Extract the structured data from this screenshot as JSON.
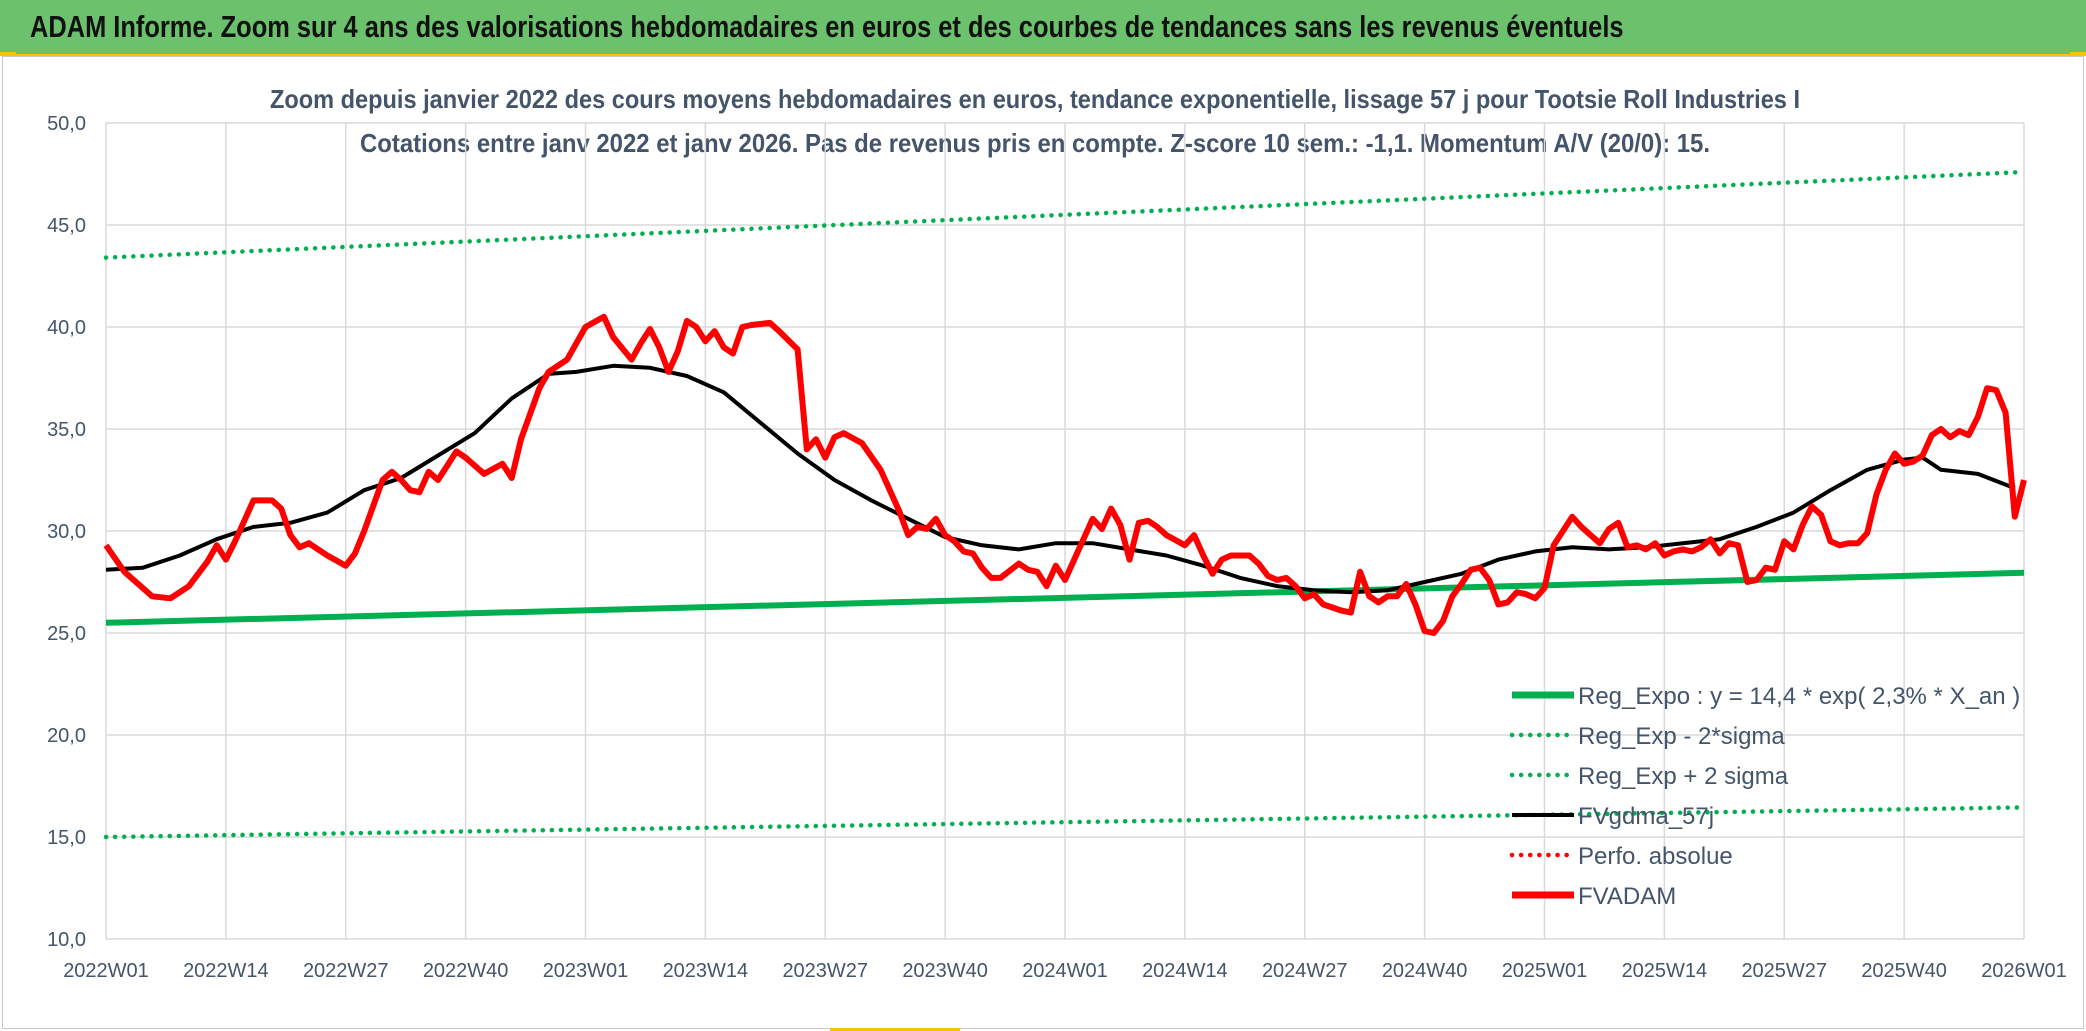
{
  "header": {
    "title": "ADAM Informe. Zoom sur 4 ans des valorisations hebdomadaires en euros et des courbes de tendances sans les revenus éventuels"
  },
  "colors": {
    "banner": "#6cc16c",
    "reg": "#00b050",
    "fvadam": "#ff0000",
    "fvgdma": "#000000",
    "perfo": "#ff0000",
    "text": "#44546a"
  },
  "chart_data": {
    "type": "line",
    "title": "Zoom depuis janvier 2022 des cours moyens hebdomadaires en euros, tendance exponentielle, lissage 57 j pour Tootsie Roll Industries I",
    "subtitle": "Cotations entre janv 2022 et janv 2026. Pas de revenus pris en compte. Z-score 10 sem.: -1,1. Momentum A/V (20/0): 15.",
    "xlabel": "",
    "ylabel": "",
    "ylim": [
      10,
      50
    ],
    "yticks": [
      "10,0",
      "15,0",
      "20,0",
      "25,0",
      "30,0",
      "35,0",
      "40,0",
      "45,0",
      "50,0"
    ],
    "xrange": [
      0,
      208
    ],
    "x_ticks": [
      {
        "label": "2022W01",
        "x": 0
      },
      {
        "label": "2022W14",
        "x": 13
      },
      {
        "label": "2022W27",
        "x": 26
      },
      {
        "label": "2022W40",
        "x": 39
      },
      {
        "label": "2023W01",
        "x": 52
      },
      {
        "label": "2023W14",
        "x": 65
      },
      {
        "label": "2023W27",
        "x": 78
      },
      {
        "label": "2023W40",
        "x": 91
      },
      {
        "label": "2024W01",
        "x": 104
      },
      {
        "label": "2024W14",
        "x": 117
      },
      {
        "label": "2024W27",
        "x": 130
      },
      {
        "label": "2024W40",
        "x": 143
      },
      {
        "label": "2025W01",
        "x": 156
      },
      {
        "label": "2025W14",
        "x": 169
      },
      {
        "label": "2025W27",
        "x": 182
      },
      {
        "label": "2025W40",
        "x": 195
      },
      {
        "label": "2026W01",
        "x": 208
      }
    ],
    "series": [
      {
        "name": "Reg_Expo : y = 14,4 * exp( 2,3% *  X_an )",
        "style": "solid-thick",
        "color": "#00b050",
        "points": [
          [
            0,
            25.5
          ],
          [
            208,
            27.95
          ]
        ]
      },
      {
        "name": "Reg_Exp - 2*sigma",
        "style": "dotted",
        "color": "#00b050",
        "points": [
          [
            0,
            15.0
          ],
          [
            208,
            16.45
          ]
        ]
      },
      {
        "name": "Reg_Exp + 2 sigma",
        "style": "dotted",
        "color": "#00b050",
        "points": [
          [
            0,
            43.4
          ],
          [
            208,
            47.6
          ]
        ]
      },
      {
        "name": "FVgdma_57j",
        "style": "solid",
        "color": "#000000",
        "points": [
          [
            0,
            28.1
          ],
          [
            4,
            28.2
          ],
          [
            8,
            28.8
          ],
          [
            12,
            29.6
          ],
          [
            16,
            30.2
          ],
          [
            20,
            30.4
          ],
          [
            24,
            30.9
          ],
          [
            28,
            32.0
          ],
          [
            32,
            32.6
          ],
          [
            36,
            33.7
          ],
          [
            40,
            34.8
          ],
          [
            44,
            36.5
          ],
          [
            48,
            37.7
          ],
          [
            51,
            37.8
          ],
          [
            55,
            38.1
          ],
          [
            59,
            38.0
          ],
          [
            63,
            37.6
          ],
          [
            67,
            36.8
          ],
          [
            71,
            35.3
          ],
          [
            75,
            33.8
          ],
          [
            79,
            32.5
          ],
          [
            83,
            31.5
          ],
          [
            87,
            30.6
          ],
          [
            91,
            29.7
          ],
          [
            95,
            29.3
          ],
          [
            99,
            29.1
          ],
          [
            103,
            29.4
          ],
          [
            107,
            29.4
          ],
          [
            111,
            29.1
          ],
          [
            115,
            28.8
          ],
          [
            119,
            28.3
          ],
          [
            123,
            27.7
          ],
          [
            127,
            27.3
          ],
          [
            131,
            27.1
          ],
          [
            135,
            27.0
          ],
          [
            139,
            27.1
          ],
          [
            143,
            27.5
          ],
          [
            147,
            27.9
          ],
          [
            151,
            28.6
          ],
          [
            155,
            29.0
          ],
          [
            159,
            29.2
          ],
          [
            163,
            29.1
          ],
          [
            167,
            29.2
          ],
          [
            171,
            29.4
          ],
          [
            175,
            29.6
          ],
          [
            179,
            30.2
          ],
          [
            183,
            30.9
          ],
          [
            187,
            32.0
          ],
          [
            191,
            33.0
          ],
          [
            195,
            33.5
          ],
          [
            197,
            33.6
          ],
          [
            199,
            33.0
          ],
          [
            203,
            32.8
          ],
          [
            207,
            32.1
          ]
        ]
      },
      {
        "name": "Perfo. absolue",
        "style": "dotted",
        "color": "#ff0000",
        "points": []
      },
      {
        "name": "FVADAM",
        "style": "solid-thick",
        "color": "#ff0000",
        "points": [
          [
            0,
            29.3
          ],
          [
            2,
            28.0
          ],
          [
            4,
            27.2
          ],
          [
            5,
            26.8
          ],
          [
            7,
            26.7
          ],
          [
            9,
            27.3
          ],
          [
            11,
            28.5
          ],
          [
            12,
            29.3
          ],
          [
            13,
            28.6
          ],
          [
            14,
            29.5
          ],
          [
            16,
            31.5
          ],
          [
            18,
            31.5
          ],
          [
            19,
            31.1
          ],
          [
            20,
            29.8
          ],
          [
            21,
            29.2
          ],
          [
            22,
            29.4
          ],
          [
            24,
            28.8
          ],
          [
            26,
            28.3
          ],
          [
            27,
            28.9
          ],
          [
            28,
            30.0
          ],
          [
            30,
            32.5
          ],
          [
            31,
            32.9
          ],
          [
            32,
            32.5
          ],
          [
            33,
            32.0
          ],
          [
            34,
            31.9
          ],
          [
            35,
            32.9
          ],
          [
            36,
            32.5
          ],
          [
            37,
            33.2
          ],
          [
            38,
            33.9
          ],
          [
            39,
            33.6
          ],
          [
            41,
            32.8
          ],
          [
            43,
            33.3
          ],
          [
            44,
            32.6
          ],
          [
            45,
            34.5
          ],
          [
            47,
            37.0
          ],
          [
            48,
            37.8
          ],
          [
            50,
            38.4
          ],
          [
            51,
            39.2
          ],
          [
            52,
            40.0
          ],
          [
            54,
            40.5
          ],
          [
            55,
            39.5
          ],
          [
            57,
            38.4
          ],
          [
            58,
            39.2
          ],
          [
            59,
            39.9
          ],
          [
            60,
            39.0
          ],
          [
            61,
            37.8
          ],
          [
            62,
            38.8
          ],
          [
            63,
            40.3
          ],
          [
            64,
            40.0
          ],
          [
            65,
            39.3
          ],
          [
            66,
            39.8
          ],
          [
            67,
            39.0
          ],
          [
            68,
            38.7
          ],
          [
            69,
            40.0
          ],
          [
            70,
            40.1
          ],
          [
            72,
            40.2
          ],
          [
            73,
            39.8
          ],
          [
            75,
            38.9
          ],
          [
            76,
            34.0
          ],
          [
            77,
            34.5
          ],
          [
            78,
            33.6
          ],
          [
            79,
            34.6
          ],
          [
            80,
            34.8
          ],
          [
            82,
            34.3
          ],
          [
            84,
            33.0
          ],
          [
            86,
            31.0
          ],
          [
            87,
            29.8
          ],
          [
            88,
            30.2
          ],
          [
            89,
            30.1
          ],
          [
            90,
            30.6
          ],
          [
            91,
            29.8
          ],
          [
            92,
            29.5
          ],
          [
            93,
            29.0
          ],
          [
            94,
            28.9
          ],
          [
            95,
            28.2
          ],
          [
            96,
            27.7
          ],
          [
            97,
            27.7
          ],
          [
            99,
            28.4
          ],
          [
            100,
            28.1
          ],
          [
            101,
            28.0
          ],
          [
            102,
            27.3
          ],
          [
            103,
            28.3
          ],
          [
            104,
            27.6
          ],
          [
            105,
            28.6
          ],
          [
            107,
            30.6
          ],
          [
            108,
            30.1
          ],
          [
            109,
            31.1
          ],
          [
            110,
            30.3
          ],
          [
            111,
            28.6
          ],
          [
            112,
            30.4
          ],
          [
            113,
            30.5
          ],
          [
            114,
            30.2
          ],
          [
            115,
            29.8
          ],
          [
            117,
            29.3
          ],
          [
            118,
            29.8
          ],
          [
            119,
            28.8
          ],
          [
            120,
            27.9
          ],
          [
            121,
            28.6
          ],
          [
            122,
            28.8
          ],
          [
            124,
            28.8
          ],
          [
            125,
            28.4
          ],
          [
            126,
            27.8
          ],
          [
            127,
            27.6
          ],
          [
            128,
            27.7
          ],
          [
            129,
            27.3
          ],
          [
            130,
            26.7
          ],
          [
            131,
            26.9
          ],
          [
            132,
            26.4
          ],
          [
            134,
            26.1
          ],
          [
            135,
            26.0
          ],
          [
            136,
            28.0
          ],
          [
            137,
            26.8
          ],
          [
            138,
            26.5
          ],
          [
            139,
            26.8
          ],
          [
            140,
            26.8
          ],
          [
            141,
            27.4
          ],
          [
            142,
            26.4
          ],
          [
            143,
            25.1
          ],
          [
            144,
            25.0
          ],
          [
            145,
            25.6
          ],
          [
            146,
            26.8
          ],
          [
            147,
            27.4
          ],
          [
            148,
            28.1
          ],
          [
            149,
            28.2
          ],
          [
            150,
            27.6
          ],
          [
            151,
            26.4
          ],
          [
            152,
            26.5
          ],
          [
            153,
            27.0
          ],
          [
            154,
            26.9
          ],
          [
            155,
            26.7
          ],
          [
            156,
            27.2
          ],
          [
            157,
            29.3
          ],
          [
            159,
            30.7
          ],
          [
            160,
            30.2
          ],
          [
            161,
            29.8
          ],
          [
            162,
            29.4
          ],
          [
            163,
            30.1
          ],
          [
            164,
            30.4
          ],
          [
            165,
            29.2
          ],
          [
            166,
            29.3
          ],
          [
            167,
            29.1
          ],
          [
            168,
            29.4
          ],
          [
            169,
            28.8
          ],
          [
            170,
            29.0
          ],
          [
            171,
            29.1
          ],
          [
            172,
            29.0
          ],
          [
            173,
            29.2
          ],
          [
            174,
            29.6
          ],
          [
            175,
            28.9
          ],
          [
            176,
            29.4
          ],
          [
            177,
            29.3
          ],
          [
            178,
            27.5
          ],
          [
            179,
            27.6
          ],
          [
            180,
            28.2
          ],
          [
            181,
            28.1
          ],
          [
            182,
            29.5
          ],
          [
            183,
            29.1
          ],
          [
            184,
            30.3
          ],
          [
            185,
            31.2
          ],
          [
            186,
            30.8
          ],
          [
            187,
            29.5
          ],
          [
            188,
            29.3
          ],
          [
            189,
            29.4
          ],
          [
            190,
            29.4
          ],
          [
            191,
            29.9
          ],
          [
            192,
            31.8
          ],
          [
            193,
            33.0
          ],
          [
            194,
            33.8
          ],
          [
            195,
            33.3
          ],
          [
            196,
            33.4
          ],
          [
            197,
            33.7
          ],
          [
            198,
            34.7
          ],
          [
            199,
            35.0
          ],
          [
            200,
            34.6
          ],
          [
            201,
            34.9
          ],
          [
            202,
            34.7
          ],
          [
            203,
            35.6
          ],
          [
            204,
            37.0
          ],
          [
            205,
            36.9
          ],
          [
            206,
            35.8
          ],
          [
            207,
            30.7
          ],
          [
            208,
            32.5
          ]
        ]
      }
    ],
    "x_extent_note": "weekly index, 0 = 2022W01"
  }
}
